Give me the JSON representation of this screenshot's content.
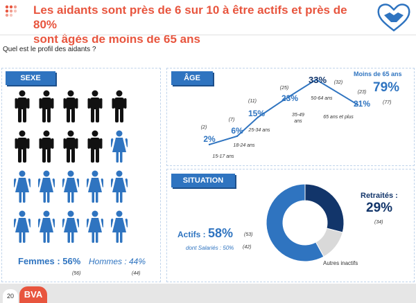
{
  "header": {
    "title_line1": "Les aidants sont près de 6 sur 10 à être actifs et près de 80%",
    "title_line2": "sont âgés de moins de 65 ans",
    "bullet_icon": "dots-grid-icon",
    "logo_icon": "handshake-heart-icon",
    "accent_color": "#e8553e"
  },
  "question": "Quel est le profil des aidants ?",
  "sexe": {
    "tab": "SEXE",
    "female_label": "Femmes : 56%",
    "male_label": "Hommes : 44%",
    "female_count": "(56)",
    "male_count": "(44)",
    "male_icon": "man-icon",
    "female_icon": "woman-icon",
    "men_icons": 9,
    "women_icons": 11
  },
  "age": {
    "tab": "ÂGE",
    "groups": [
      {
        "label": "15-17 ans",
        "pct": "2%",
        "count": "(2)",
        "value": 2
      },
      {
        "label": "18-24 ans",
        "pct": "6%",
        "count": "(7)",
        "value": 6
      },
      {
        "label": "25-34 ans",
        "pct": "15%",
        "count": "(11)",
        "value": 15
      },
      {
        "label": "35-49 ans",
        "pct": "23%",
        "count": "(25)",
        "value": 23
      },
      {
        "label": "50-64 ans",
        "pct": "33%",
        "count": "(32)",
        "value": 33
      },
      {
        "label": "65 ans et plus",
        "pct": "21%",
        "count": "(23)",
        "value": 21
      }
    ],
    "under65_label": "Moins de 65 ans",
    "under65_pct": "79%",
    "under65_count": "(77)"
  },
  "situation": {
    "tab": "SITUATION",
    "actifs_label": "Actifs : ",
    "actifs_pct": "58%",
    "actifs_count": "(53)",
    "salaries_label": "dont Salariés : 50%",
    "salaries_count": "(42)",
    "retraites_label": "Retraités :",
    "retraites_pct": "29%",
    "retraites_count": "(34)",
    "autres_label": "Autres inactifs",
    "donut": [
      {
        "name": "Retraités",
        "value": 29,
        "color": "#12356a"
      },
      {
        "name": "Autres inactifs",
        "value": 13,
        "color": "#d9d9d9"
      },
      {
        "name": "Actifs",
        "value": 58,
        "color": "#2f74c0"
      }
    ]
  },
  "footer": {
    "page_number": "20",
    "brand": "BVA"
  }
}
